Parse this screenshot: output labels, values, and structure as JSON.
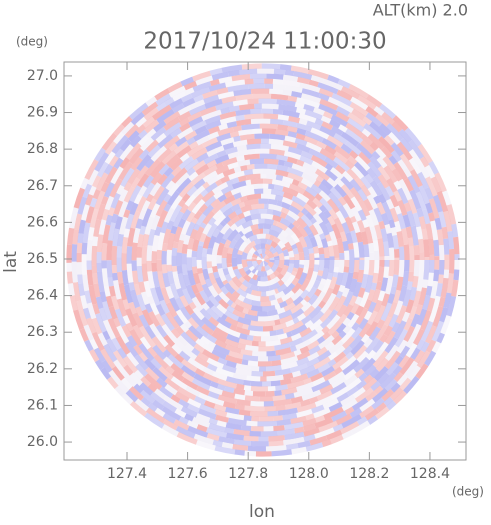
{
  "chart_data": {
    "type": "radar-ppi",
    "title": "2017/10/24 11:00:30",
    "subtitle": "ALT(km)  2.0",
    "x_label": "lon",
    "y_label": "lat",
    "x_unit": "(deg)",
    "y_unit": "(deg)",
    "xlim": [
      127.192,
      128.519
    ],
    "ylim": [
      25.951,
      27.038
    ],
    "xticks": [
      127.4,
      127.6,
      127.8,
      {
        "value": 128,
        "label": "128.0"
      },
      128.2,
      128.4
    ],
    "yticks": [
      {
        "value": 26,
        "label": "26.0"
      },
      26.1,
      26.2,
      26.3,
      26.4,
      26.5,
      26.6,
      26.7,
      26.8,
      26.9,
      {
        "value": 27,
        "label": "27.0"
      }
    ],
    "colors": {
      "positive": "#f5b3b3",
      "negative": "#b9b9f2"
    }
  }
}
